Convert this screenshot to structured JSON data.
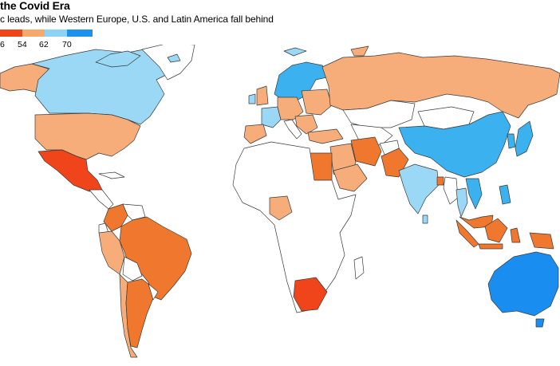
{
  "header": {
    "title": "the Covid Era",
    "subtitle": "c leads, while Western Europe, U.S. and Latin America fall behind"
  },
  "legend": {
    "ticks": [
      "6",
      "54",
      "62",
      "70"
    ],
    "colors": [
      "#f0441a",
      "#f7a86b",
      "#8dd4f4",
      "#1e90ee"
    ]
  },
  "map": {
    "colors": {
      "deep_orange": "#f0441a",
      "orange": "#f0782e",
      "light_orange": "#f6ad7a",
      "light_blue": "#9ad8f5",
      "sky_blue": "#3cb1f0",
      "blue": "#1a8ef0",
      "no_data": "#ffffff"
    }
  }
}
